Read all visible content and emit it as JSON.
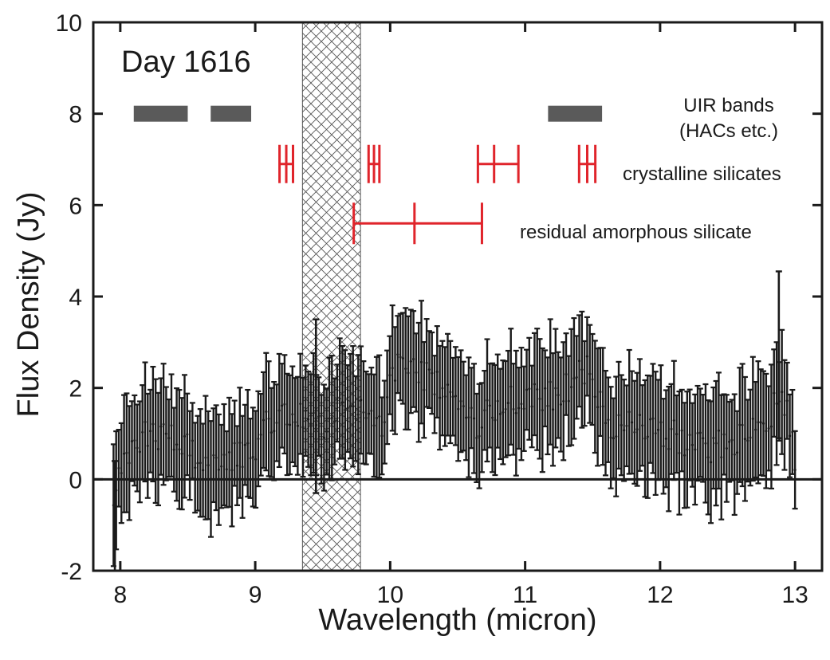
{
  "chart_data": {
    "type": "scatter",
    "panel_label": "Day 1616",
    "xlabel": "Wavelength (micron)",
    "ylabel": "Flux Density (Jy)",
    "xlim": [
      7.8,
      13.2
    ],
    "ylim": [
      -2,
      10
    ],
    "x_ticks": [
      8,
      9,
      10,
      11,
      12,
      13
    ],
    "y_ticks": [
      -2,
      0,
      2,
      4,
      6,
      8,
      10
    ],
    "x_tick_labels": [
      "8",
      "9",
      "10",
      "11",
      "12",
      "13"
    ],
    "y_tick_labels": [
      "-2",
      "0",
      "2",
      "4",
      "6",
      "8",
      "10"
    ],
    "zero_line": 0,
    "grid": false,
    "excluded_region": {
      "x": [
        9.35,
        9.78
      ],
      "pattern": "crosshatch"
    },
    "uir_bands": {
      "label_line1": "UIR bands",
      "label_line2": "(HACs etc.)",
      "y": 8,
      "color": "#5a5a5a",
      "ranges": [
        [
          8.1,
          8.5
        ],
        [
          8.67,
          8.97
        ],
        [
          11.17,
          11.57
        ]
      ]
    },
    "crystalline_silicates": {
      "label": "crystalline silicates",
      "y": 6.9,
      "color": "#e0242b",
      "groups": [
        {
          "ticks": [
            9.18,
            9.23,
            9.28
          ],
          "connector": [
            9.18,
            9.28
          ]
        },
        {
          "ticks": [
            9.84,
            9.88,
            9.92
          ],
          "connector": [
            9.84,
            9.92
          ]
        },
        {
          "ticks": [
            10.65,
            10.77,
            10.95
          ],
          "connector": [
            10.65,
            10.95
          ]
        },
        {
          "ticks": [
            11.4,
            11.46,
            11.52
          ],
          "connector": [
            11.4,
            11.52
          ]
        }
      ]
    },
    "residual_amorphous_silicate": {
      "label": "residual amorphous silicate",
      "y": 5.6,
      "color": "#e0242b",
      "range": [
        9.73,
        10.68
      ],
      "center": 10.18
    },
    "series": [
      {
        "color": "#1a1a1a",
        "x_start": 7.95,
        "x_end": 13.0,
        "anchor_x": [
          7.95,
          8.0,
          8.1,
          8.2,
          8.3,
          8.45,
          8.6,
          8.75,
          8.9,
          9.0,
          9.1,
          9.2,
          9.35,
          9.45,
          9.55,
          9.65,
          9.75,
          9.85,
          9.95,
          10.0,
          10.1,
          10.3,
          10.5,
          10.65,
          10.8,
          11.0,
          11.2,
          11.3,
          11.45,
          11.5,
          11.6,
          11.8,
          12.0,
          12.2,
          12.4,
          12.6,
          12.8,
          12.9,
          13.0
        ],
        "anchor_y": [
          -0.5,
          0.3,
          0.6,
          1.0,
          1.0,
          0.9,
          0.3,
          0.4,
          0.5,
          0.7,
          1.3,
          1.5,
          1.4,
          1.2,
          1.0,
          1.6,
          1.5,
          1.3,
          1.2,
          2.4,
          2.5,
          2.2,
          1.9,
          1.2,
          1.6,
          1.8,
          1.8,
          2.0,
          2.4,
          2.2,
          1.1,
          1.3,
          1.1,
          0.8,
          0.7,
          0.9,
          1.2,
          2.0,
          0.5
        ],
        "error_half_width": 1.1,
        "spike_errors": [
          {
            "x": 12.88,
            "top": 4.55,
            "bottom": 0.9
          },
          {
            "x": 9.45,
            "top": 3.5,
            "bottom": -0.3
          },
          {
            "x": 7.96,
            "top": 0.4,
            "bottom": -2.0
          }
        ]
      }
    ]
  }
}
